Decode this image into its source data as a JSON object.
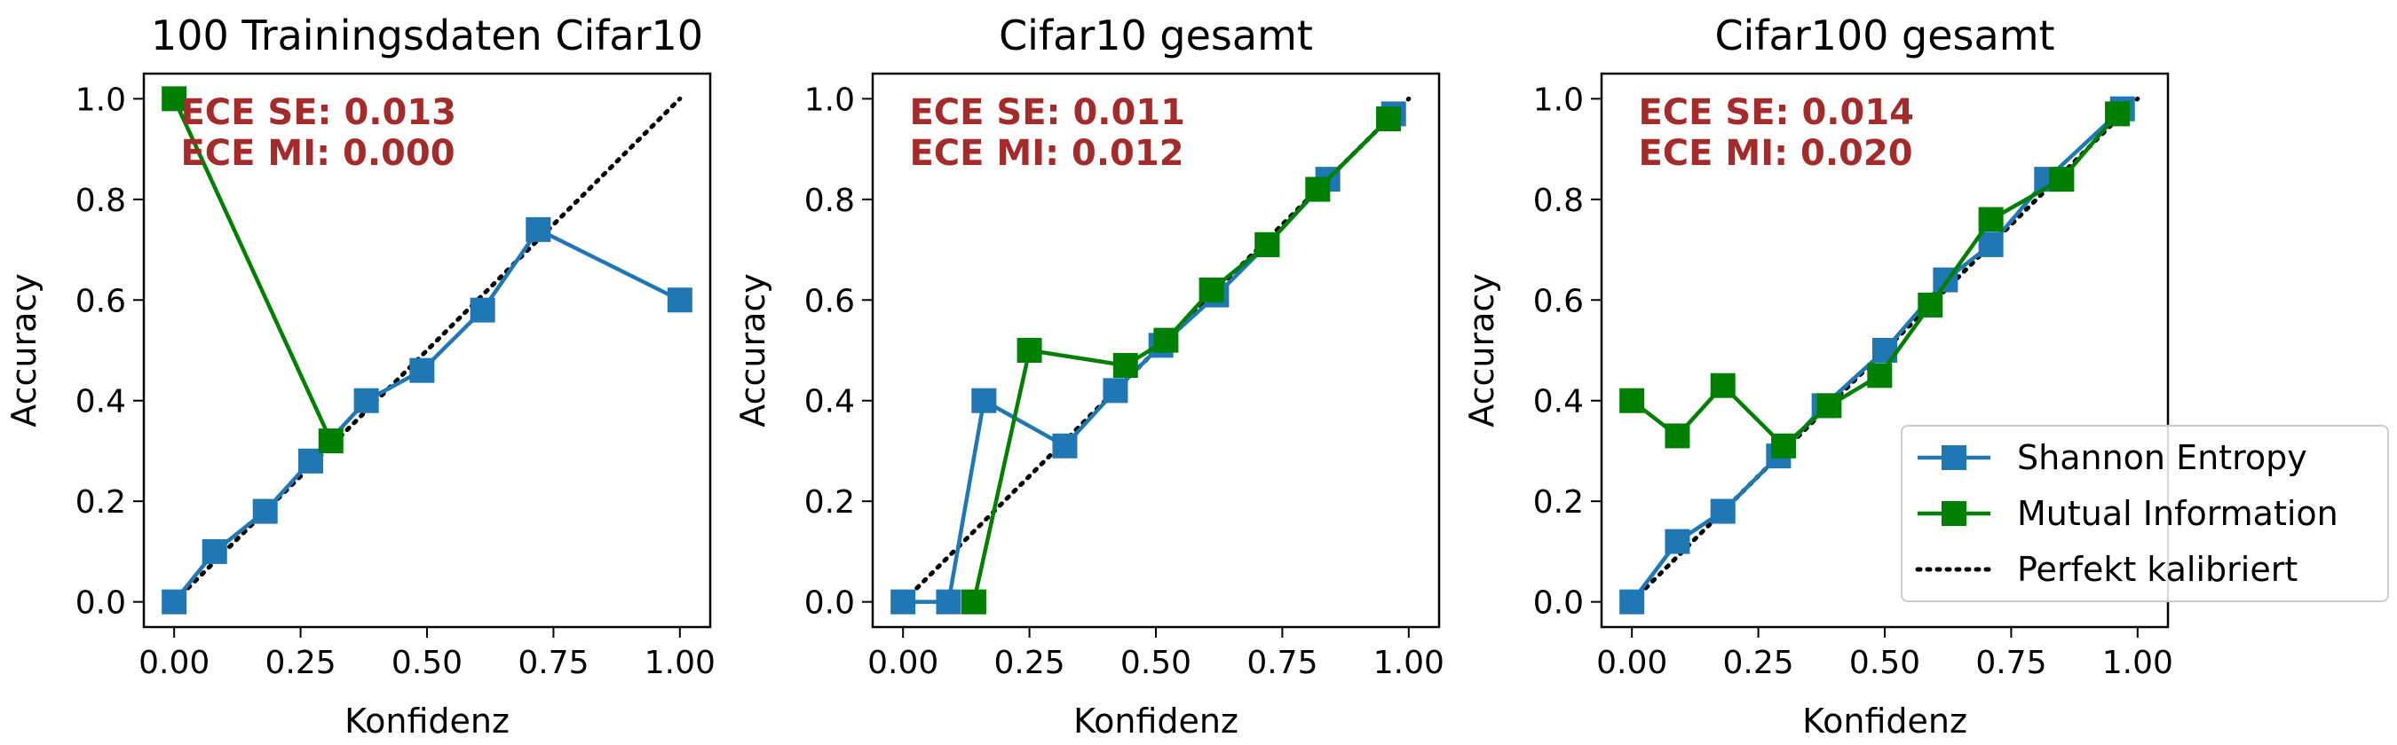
{
  "chart_data": [
    {
      "type": "line",
      "title": "100 Trainingsdaten Cifar10",
      "xlabel": "Konfidenz",
      "ylabel": "Accuracy",
      "xlim": [
        -0.06,
        1.06
      ],
      "ylim": [
        -0.05,
        1.05
      ],
      "xticks": [
        "0.00",
        "0.25",
        "0.50",
        "0.75",
        "1.00"
      ],
      "yticks": [
        "0.0",
        "0.2",
        "0.4",
        "0.6",
        "0.8",
        "1.0"
      ],
      "annotations": [
        "ECE SE: 0.013",
        "ECE MI: 0.000"
      ],
      "series": [
        {
          "name": "Shannon Entropy",
          "color": "#1f77b4",
          "x": [
            0.0,
            0.08,
            0.18,
            0.27,
            0.38,
            0.49,
            0.61,
            0.72,
            1.0
          ],
          "y": [
            0.0,
            0.1,
            0.18,
            0.28,
            0.4,
            0.46,
            0.58,
            0.74,
            0.6
          ]
        },
        {
          "name": "Mutual Information",
          "color": "#008000",
          "x": [
            0.0,
            0.31
          ],
          "y": [
            1.0,
            0.32
          ]
        }
      ]
    },
    {
      "type": "line",
      "title": "Cifar10 gesamt",
      "xlabel": "Konfidenz",
      "ylabel": "Accuracy",
      "xlim": [
        -0.06,
        1.06
      ],
      "ylim": [
        -0.05,
        1.05
      ],
      "xticks": [
        "0.00",
        "0.25",
        "0.50",
        "0.75",
        "1.00"
      ],
      "yticks": [
        "0.0",
        "0.2",
        "0.4",
        "0.6",
        "0.8",
        "1.0"
      ],
      "annotations": [
        "ECE SE: 0.011",
        "ECE MI: 0.012"
      ],
      "series": [
        {
          "name": "Shannon Entropy",
          "color": "#1f77b4",
          "x": [
            0.0,
            0.09,
            0.16,
            0.32,
            0.42,
            0.51,
            0.62,
            0.72,
            0.84,
            0.97
          ],
          "y": [
            0.0,
            0.0,
            0.4,
            0.31,
            0.42,
            0.51,
            0.61,
            0.71,
            0.84,
            0.97
          ]
        },
        {
          "name": "Mutual Information",
          "color": "#008000",
          "x": [
            0.14,
            0.25,
            0.44,
            0.52,
            0.61,
            0.72,
            0.82,
            0.96
          ],
          "y": [
            0.0,
            0.5,
            0.47,
            0.52,
            0.62,
            0.71,
            0.82,
            0.96
          ]
        }
      ]
    },
    {
      "type": "line",
      "title": "Cifar100 gesamt",
      "xlabel": "Konfidenz",
      "ylabel": "Accuracy",
      "xlim": [
        -0.06,
        1.06
      ],
      "ylim": [
        -0.05,
        1.05
      ],
      "xticks": [
        "0.00",
        "0.25",
        "0.50",
        "0.75",
        "1.00"
      ],
      "yticks": [
        "0.0",
        "0.2",
        "0.4",
        "0.6",
        "0.8",
        "1.0"
      ],
      "annotations": [
        "ECE SE: 0.014",
        "ECE MI: 0.020"
      ],
      "series": [
        {
          "name": "Shannon Entropy",
          "color": "#1f77b4",
          "x": [
            0.0,
            0.09,
            0.18,
            0.29,
            0.38,
            0.5,
            0.62,
            0.71,
            0.82,
            0.97
          ],
          "y": [
            0.0,
            0.12,
            0.18,
            0.29,
            0.39,
            0.5,
            0.64,
            0.71,
            0.84,
            0.98
          ]
        },
        {
          "name": "Mutual Information",
          "color": "#008000",
          "x": [
            0.0,
            0.09,
            0.18,
            0.3,
            0.39,
            0.49,
            0.59,
            0.71,
            0.85,
            0.96
          ],
          "y": [
            0.4,
            0.33,
            0.43,
            0.31,
            0.39,
            0.45,
            0.59,
            0.76,
            0.84,
            0.97
          ]
        }
      ]
    }
  ],
  "legend": {
    "placement": "lower-right",
    "entries": [
      {
        "label": "Shannon Entropy",
        "color": "#1f77b4",
        "style": "line-square"
      },
      {
        "label": "Mutual Information",
        "color": "#008000",
        "style": "line-square"
      },
      {
        "label": "Perfekt kalibriert",
        "color": "#000000",
        "style": "dotted"
      }
    ]
  }
}
